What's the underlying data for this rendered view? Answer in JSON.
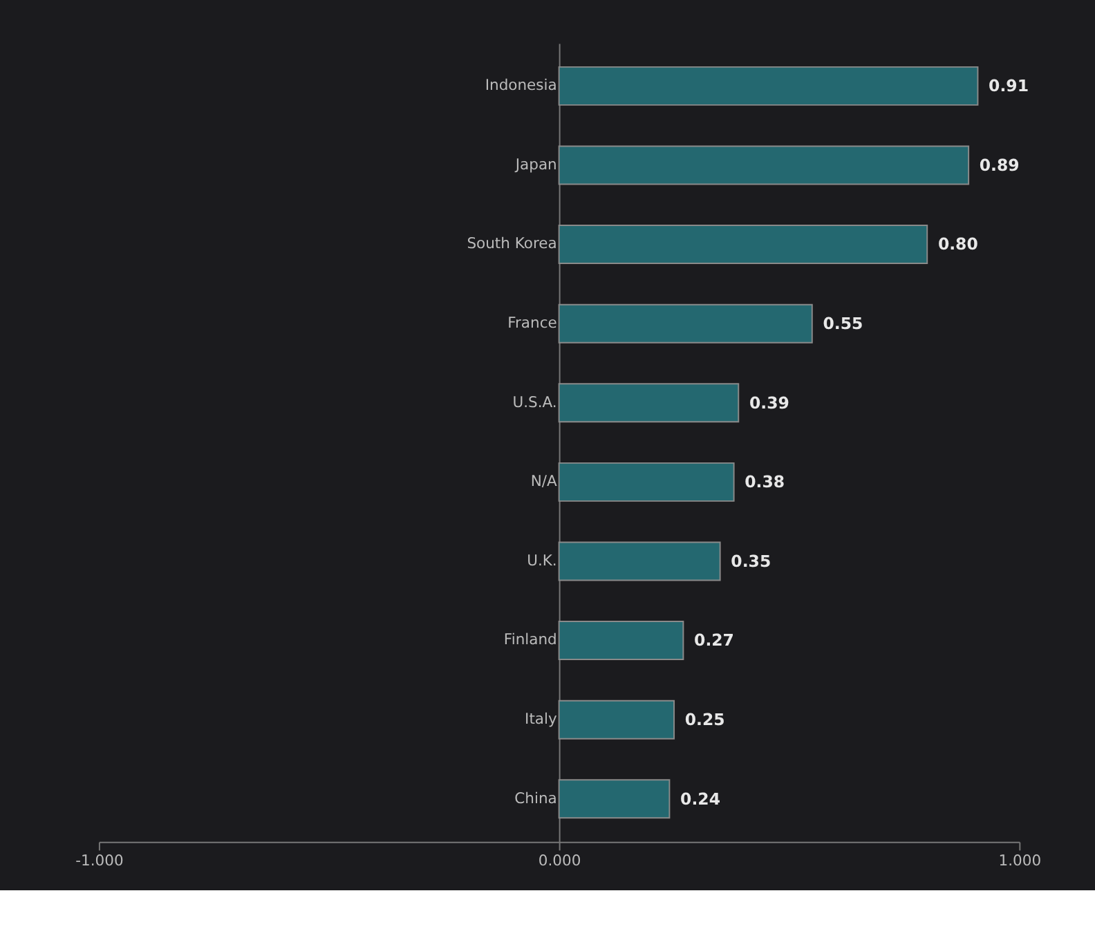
{
  "chart_data": {
    "type": "bar",
    "orientation": "horizontal",
    "categories": [
      "Indonesia",
      "Japan",
      "South Korea",
      "France",
      "U.S.A.",
      "N/A",
      "U.K.",
      "Finland",
      "Italy",
      "China"
    ],
    "values": [
      0.91,
      0.89,
      0.8,
      0.55,
      0.39,
      0.38,
      0.35,
      0.27,
      0.25,
      0.24
    ],
    "value_labels": [
      "0.91",
      "0.89",
      "0.80",
      "0.55",
      "0.39",
      "0.38",
      "0.35",
      "0.27",
      "0.25",
      "0.24"
    ],
    "color": "#246870",
    "xlim": [
      -1,
      1
    ],
    "xticks": [
      {
        "value": -1,
        "label": "-1.000"
      },
      {
        "value": 0,
        "label": "0.000"
      },
      {
        "value": 1,
        "label": "1.000"
      }
    ],
    "grid": false
  }
}
